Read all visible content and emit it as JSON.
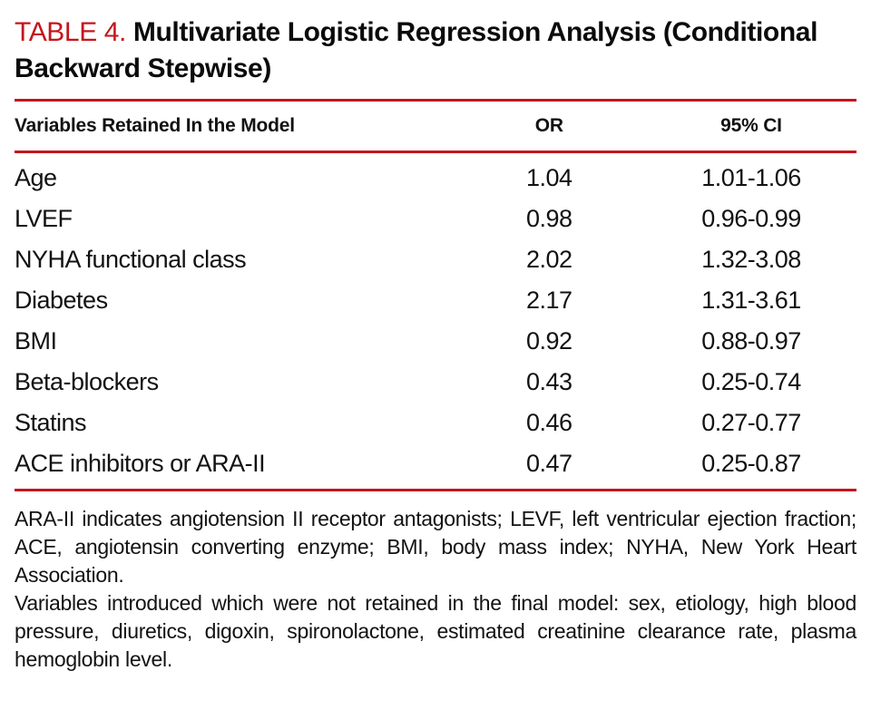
{
  "colors": {
    "accent": "#c3161c"
  },
  "title": {
    "tag": "TABLE 4.",
    "text": "Multivariate Logistic Regression Analysis (Conditional Backward Stepwise)"
  },
  "table": {
    "columns": [
      "Variables Retained In the Model",
      "OR",
      "95% CI"
    ],
    "rows": [
      {
        "variable": "Age",
        "or": "1.04",
        "ci": "1.01-1.06"
      },
      {
        "variable": "LVEF",
        "or": "0.98",
        "ci": "0.96-0.99"
      },
      {
        "variable": "NYHA functional class",
        "or": "2.02",
        "ci": "1.32-3.08"
      },
      {
        "variable": "Diabetes",
        "or": "2.17",
        "ci": "1.31-3.61"
      },
      {
        "variable": "BMI",
        "or": "0.92",
        "ci": "0.88-0.97"
      },
      {
        "variable": "Beta-blockers",
        "or": "0.43",
        "ci": "0.25-0.74"
      },
      {
        "variable": "Statins",
        "or": "0.46",
        "ci": "0.27-0.77"
      },
      {
        "variable": "ACE inhibitors or ARA-II",
        "or": "0.47",
        "ci": "0.25-0.87"
      }
    ]
  },
  "footnotes": [
    "ARA-II indicates angiotension II receptor antagonists; LEVF, left ventricular ejection fraction; ACE, angiotensin converting enzyme; BMI, body mass index; NYHA, New York Heart Association.",
    "Variables introduced which were not retained in the final model: sex, etiology, high blood pressure, diuretics, digoxin, spironolactone, estimated creatinine clearance rate, plasma hemoglobin level."
  ]
}
